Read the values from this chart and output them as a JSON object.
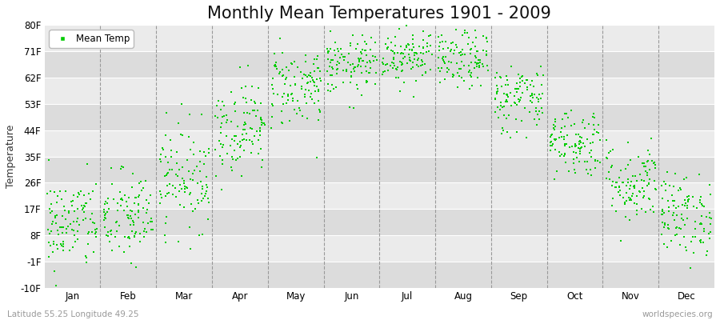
{
  "title": "Monthly Mean Temperatures 1901 - 2009",
  "ylabel": "Temperature",
  "xlabel_labels": [
    "Jan",
    "Feb",
    "Mar",
    "Apr",
    "May",
    "Jun",
    "Jul",
    "Aug",
    "Sep",
    "Oct",
    "Nov",
    "Dec"
  ],
  "subtitle_left": "Latitude 55.25 Longitude 49.25",
  "subtitle_right": "worldspecies.org",
  "legend_label": "Mean Temp",
  "dot_color": "#00cc00",
  "bg_color": "#ffffff",
  "plot_bg_light": "#ebebeb",
  "plot_bg_dark": "#dcdcdc",
  "ylim": [
    -10,
    80
  ],
  "yticks": [
    -10,
    -1,
    8,
    17,
    26,
    35,
    44,
    53,
    62,
    71,
    80
  ],
  "ytick_labels": [
    "-10F",
    "-1F",
    "8F",
    "17F",
    "26F",
    "35F",
    "44F",
    "53F",
    "62F",
    "71F",
    "80F"
  ],
  "monthly_means_F": [
    12,
    14,
    28,
    45,
    59,
    66,
    70,
    68,
    55,
    40,
    26,
    15
  ],
  "monthly_stds_F": [
    8,
    8,
    9,
    8,
    7,
    5,
    5,
    5,
    6,
    6,
    7,
    7
  ],
  "n_years": 109,
  "dashed_color": "#999999",
  "title_fontsize": 15,
  "axis_fontsize": 9,
  "tick_fontsize": 8.5,
  "marker_size": 4
}
